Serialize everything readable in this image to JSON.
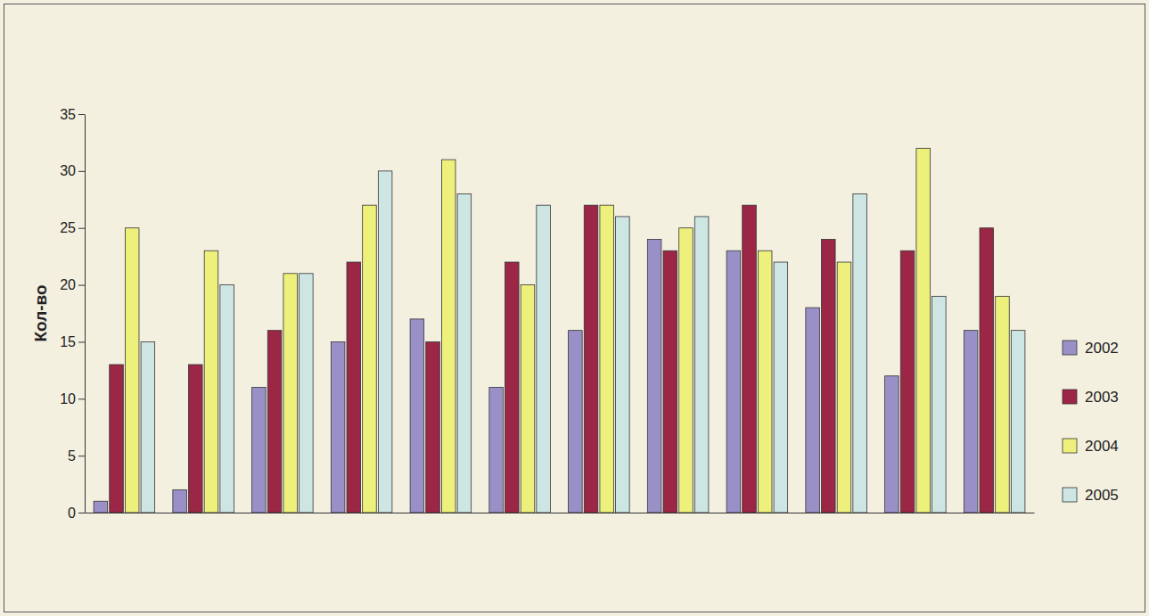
{
  "chart_data": {
    "type": "bar",
    "y_label": "Кол-во",
    "categories": [
      null,
      null,
      null,
      null,
      null,
      null,
      null,
      null,
      null,
      null,
      null,
      null
    ],
    "series": [
      {
        "name": "2002",
        "color": "#9a90c8",
        "values": [
          1,
          2,
          11,
          15,
          17,
          11,
          16,
          24,
          23,
          18,
          12,
          16
        ]
      },
      {
        "name": "2003",
        "color": "#9b2645",
        "values": [
          13,
          13,
          16,
          22,
          15,
          22,
          27,
          23,
          27,
          24,
          23,
          25
        ]
      },
      {
        "name": "2004",
        "color": "#eef07c",
        "values": [
          25,
          23,
          21,
          27,
          31,
          20,
          27,
          25,
          23,
          22,
          32,
          19
        ]
      },
      {
        "name": "2005",
        "color": "#cde6e4",
        "values": [
          15,
          20,
          21,
          30,
          28,
          27,
          26,
          26,
          22,
          28,
          19,
          16
        ]
      }
    ],
    "ylim": [
      0,
      35
    ],
    "yticks": [
      0,
      5,
      10,
      15,
      20,
      25,
      30,
      35
    ],
    "grid": false,
    "legend": "right",
    "tick_labels": "y"
  }
}
